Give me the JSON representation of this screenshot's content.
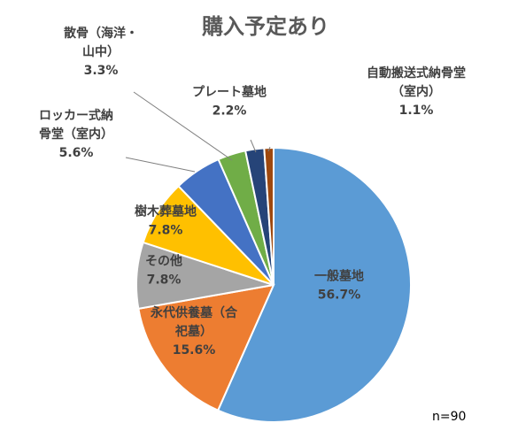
{
  "chart_data": {
    "type": "pie",
    "title": "購入予定あり",
    "note": "n=90",
    "start_angle_deg": 0,
    "direction": "clockwise",
    "slices": [
      {
        "name": "一般墓地",
        "label_lines": [
          "一般墓地"
        ],
        "value": 56.7,
        "value_text": "56.7%",
        "color": "#5B9BD5"
      },
      {
        "name": "永代供養墓（合祀墓）",
        "label_lines": [
          "永代供養墓（合",
          "祀墓）"
        ],
        "value": 15.6,
        "value_text": "15.6%",
        "color": "#ED7D31"
      },
      {
        "name": "その他",
        "label_lines": [
          "その他"
        ],
        "value": 7.8,
        "value_text": "7.8%",
        "color": "#A5A5A5"
      },
      {
        "name": "樹木葬墓地",
        "label_lines": [
          "樹木葬墓地"
        ],
        "value": 7.8,
        "value_text": "7.8%",
        "color": "#FFC000"
      },
      {
        "name": "ロッカー式納骨堂（室内）",
        "label_lines": [
          "ロッカー式納",
          "骨堂（室内）"
        ],
        "value": 5.6,
        "value_text": "5.6%",
        "color": "#4472C4"
      },
      {
        "name": "散骨（海洋・山中）",
        "label_lines": [
          "散骨（海洋・",
          "山中）"
        ],
        "value": 3.3,
        "value_text": "3.3%",
        "color": "#70AD47"
      },
      {
        "name": "プレート墓地",
        "label_lines": [
          "プレート墓地"
        ],
        "value": 2.2,
        "value_text": "2.2%",
        "color": "#264478"
      },
      {
        "name": "自動搬送式納骨堂（室内）",
        "label_lines": [
          "自動搬送式納骨堂",
          "（室内）"
        ],
        "value": 1.1,
        "value_text": "1.1%",
        "color": "#9E480E"
      }
    ]
  }
}
